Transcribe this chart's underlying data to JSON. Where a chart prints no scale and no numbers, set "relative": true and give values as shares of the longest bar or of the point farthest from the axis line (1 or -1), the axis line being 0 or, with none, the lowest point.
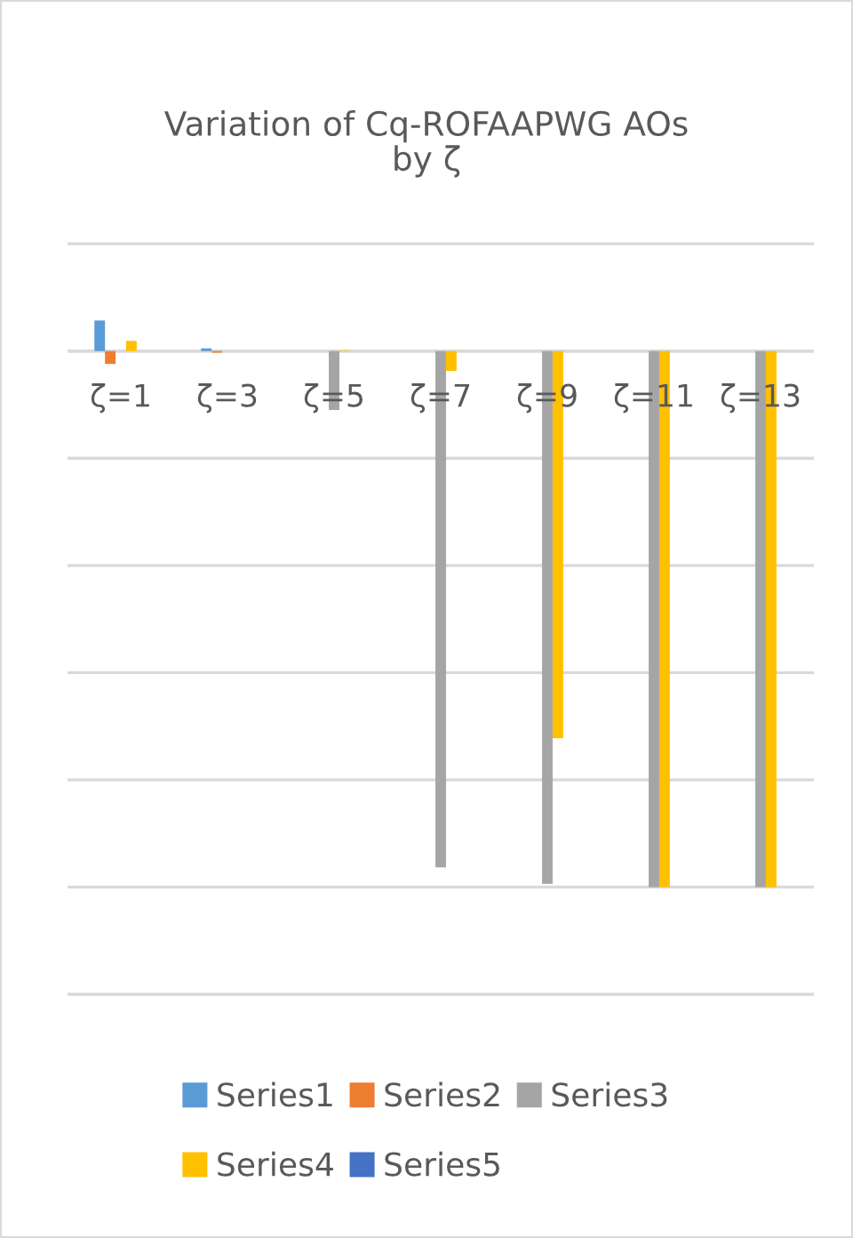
{
  "chart_data": {
    "type": "bar",
    "title": "Variation of Cq-ROFAAPWG AOs\nby ζ",
    "relative": true,
    "grid": "y",
    "legend": "bottom",
    "categories": [
      "ζ=1",
      "ζ=3",
      "ζ=5",
      "ζ=7",
      "ζ=9",
      "ζ=11",
      "ζ=13"
    ],
    "series": [
      {
        "name": "Series1",
        "color": "#5b9bd5",
        "values": [
          0.057,
          0.005,
          0,
          0,
          0,
          0,
          0
        ]
      },
      {
        "name": "Series2",
        "color": "#ed7d31",
        "values": [
          -0.024,
          -0.003,
          0,
          0,
          0,
          0,
          0
        ]
      },
      {
        "name": "Series3",
        "color": "#a5a5a5",
        "values": [
          0,
          null,
          -0.11,
          -0.963,
          -0.994,
          -1,
          -1
        ]
      },
      {
        "name": "Series4",
        "color": "#ffc000",
        "values": [
          0.019,
          0,
          0.001,
          -0.037,
          -0.722,
          -1,
          -1
        ]
      },
      {
        "name": "Series5",
        "color": "#4472c4",
        "values": [
          0,
          0,
          0,
          0,
          0,
          0,
          0
        ]
      }
    ]
  }
}
